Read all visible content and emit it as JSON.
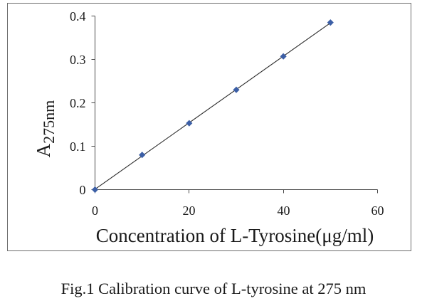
{
  "chart_data": {
    "type": "scatter",
    "x": [
      0,
      10,
      20,
      30,
      40,
      50
    ],
    "y": [
      0,
      0.08,
      0.153,
      0.23,
      0.307,
      0.385
    ],
    "xlabel": "Concentration of L-Tyrosine(μg/ml)",
    "ylabel": {
      "text": "A",
      "subscript": "275nm"
    },
    "xlim": [
      0,
      60
    ],
    "ylim": [
      0,
      0.4
    ],
    "xticks": [
      0,
      20,
      40,
      60
    ],
    "yticks": [
      0,
      0.1,
      0.2,
      0.3,
      0.4
    ],
    "trendline": true,
    "grid": false,
    "colors": {
      "marker": "#3c5fa6",
      "line": "#2b2b2b",
      "axis": "#4a4a4a"
    }
  },
  "caption": "Fig.1 Calibration curve of L-tyrosine at 275 nm"
}
